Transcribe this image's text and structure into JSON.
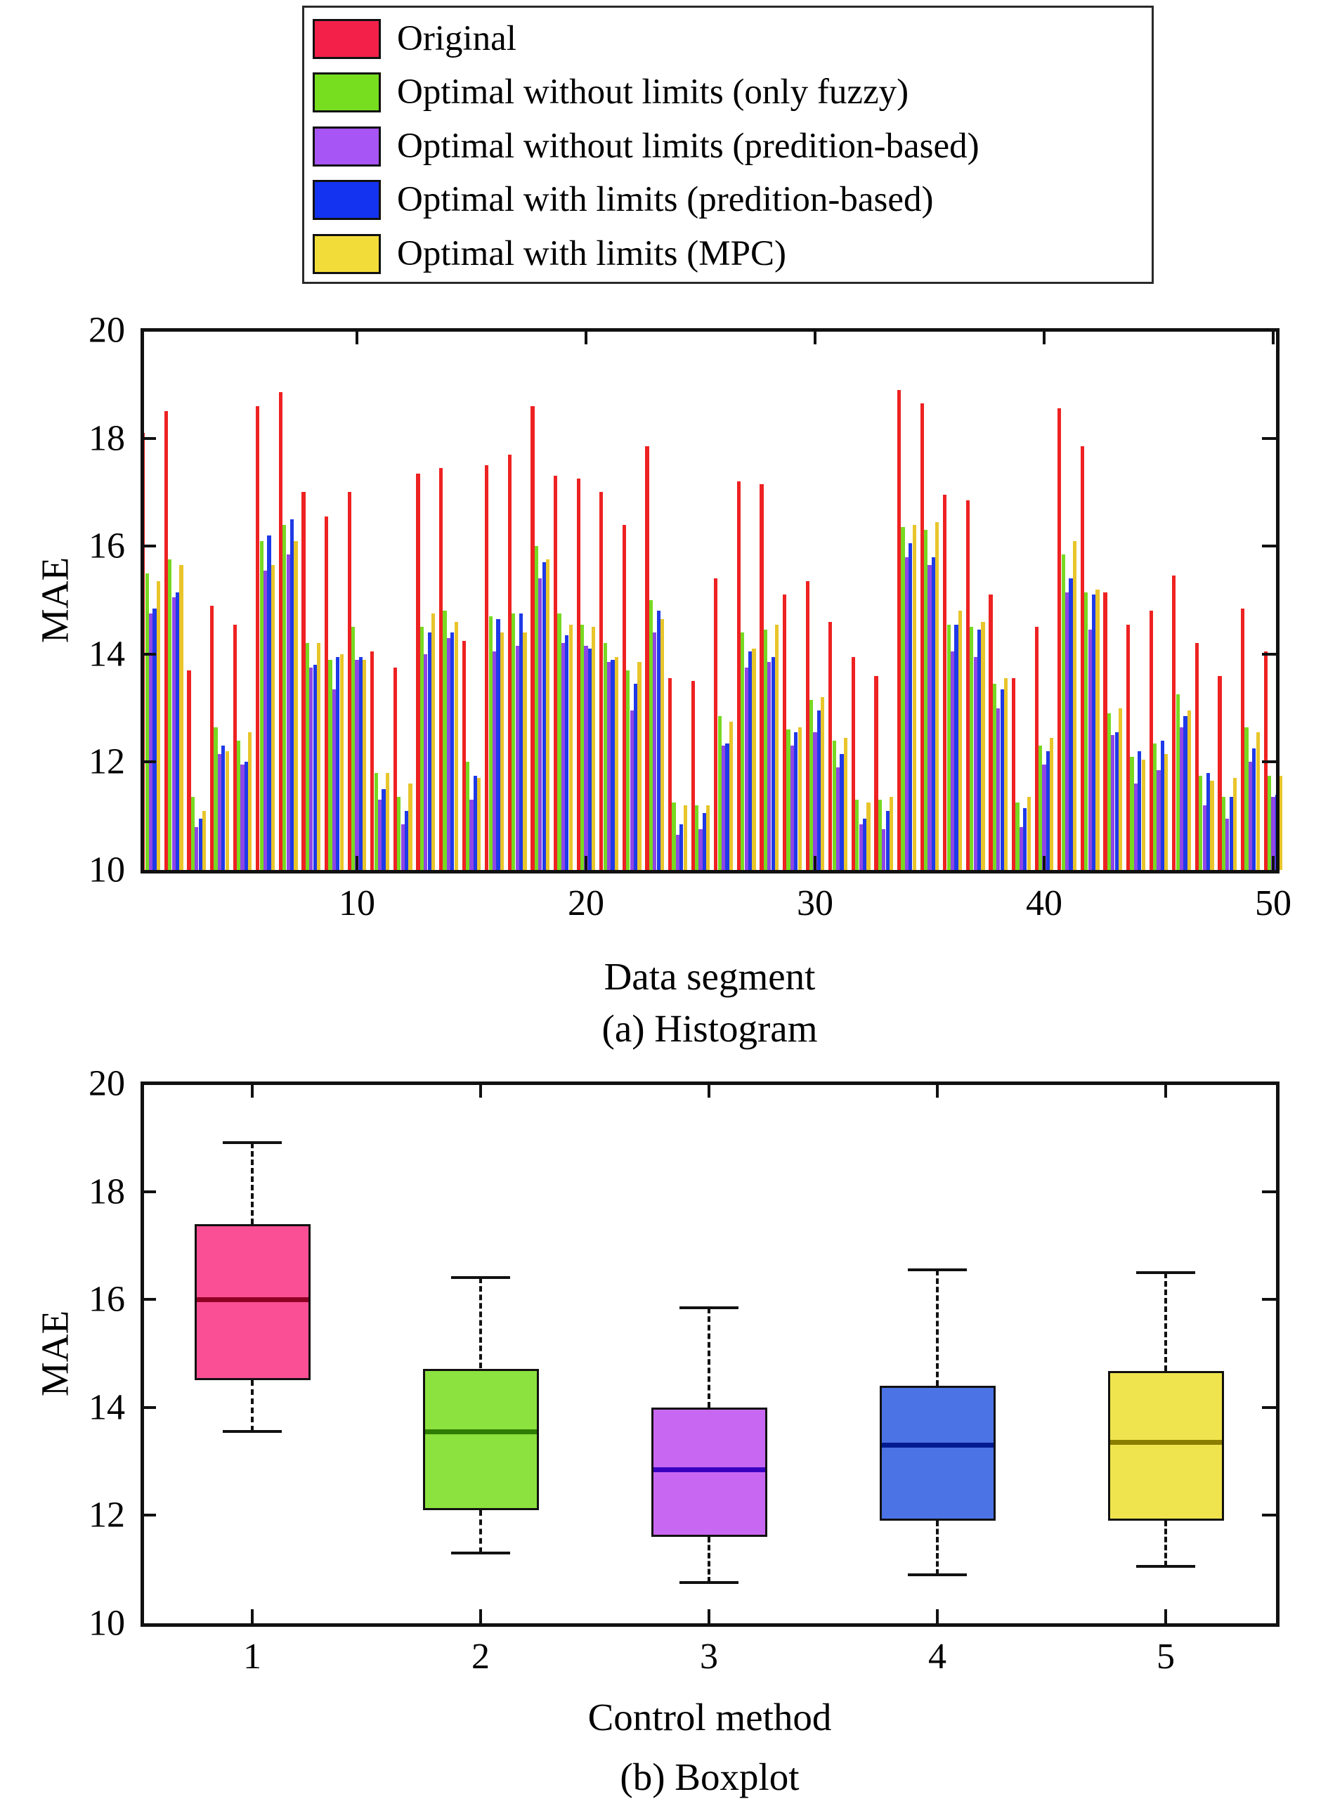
{
  "legend": {
    "items": [
      {
        "label": "Original",
        "color": "#f32049"
      },
      {
        "label": "Optimal without limits (only fuzzy)",
        "color": "#76dd1f"
      },
      {
        "label": "Optimal without limits (predition-based)",
        "color": "#a855f5"
      },
      {
        "label": "Optimal with limits (predition-based)",
        "color": "#1433f0"
      },
      {
        "label": "Optimal with limits (MPC)",
        "color": "#f2dc3a"
      }
    ]
  },
  "chart_data": [
    {
      "type": "bar",
      "title": "",
      "xlabel": "Data segment",
      "ylabel": "MAE",
      "caption": "(a) Histogram",
      "ylim": [
        10,
        20
      ],
      "y_ticks": [
        10,
        12,
        14,
        16,
        18,
        20
      ],
      "x_ticks": [
        10,
        20,
        30,
        40,
        50
      ],
      "n_segments": 50,
      "grid": false,
      "legend_position": "top-outside",
      "series": [
        {
          "name": "Original",
          "color": "#ee2222",
          "values": [
            18.1,
            18.5,
            13.7,
            14.9,
            14.55,
            18.6,
            18.85,
            17.0,
            16.55,
            17.0,
            14.05,
            13.75,
            17.35,
            17.45,
            14.25,
            17.5,
            17.7,
            18.6,
            17.3,
            17.25,
            17.0,
            16.4,
            17.85,
            13.55,
            13.5,
            15.4,
            17.2,
            17.15,
            15.1,
            15.35,
            14.6,
            13.95,
            13.6,
            18.9,
            18.65,
            16.95,
            16.85,
            15.1,
            13.55,
            14.5,
            18.55,
            17.85,
            15.15,
            14.55,
            14.8,
            15.45,
            14.2,
            13.6,
            14.85,
            14.05
          ]
        },
        {
          "name": "Optimal without limits (only fuzzy)",
          "color": "#77d921",
          "values": [
            15.5,
            15.75,
            11.35,
            12.65,
            12.4,
            16.1,
            16.4,
            14.2,
            13.9,
            14.5,
            11.8,
            11.35,
            14.5,
            14.8,
            12.0,
            14.7,
            14.75,
            16.0,
            14.75,
            14.55,
            14.2,
            13.7,
            15.0,
            11.25,
            11.2,
            12.85,
            14.4,
            14.45,
            12.6,
            13.15,
            12.4,
            11.3,
            11.3,
            16.35,
            16.3,
            14.55,
            14.5,
            13.45,
            11.25,
            12.3,
            15.85,
            15.15,
            12.9,
            12.1,
            12.35,
            13.25,
            11.75,
            11.35,
            12.65,
            11.75
          ]
        },
        {
          "name": "Optimal without limits (predition-based)",
          "color": "#8f46e6",
          "values": [
            14.75,
            15.05,
            10.8,
            12.15,
            11.95,
            15.55,
            15.85,
            13.75,
            13.35,
            13.9,
            11.3,
            10.85,
            14.0,
            14.3,
            11.3,
            14.05,
            14.15,
            15.4,
            14.2,
            14.15,
            13.85,
            12.95,
            14.4,
            10.65,
            10.75,
            12.3,
            13.75,
            13.85,
            12.3,
            12.55,
            11.9,
            10.85,
            10.75,
            15.8,
            15.65,
            14.05,
            13.95,
            13.0,
            10.8,
            11.95,
            15.15,
            14.45,
            12.5,
            11.6,
            11.85,
            12.65,
            11.2,
            10.95,
            12.0,
            11.35
          ]
        },
        {
          "name": "Optimal with limits (predition-based)",
          "color": "#1f3ae8",
          "values": [
            14.85,
            15.15,
            10.95,
            12.3,
            12.0,
            16.2,
            16.5,
            13.8,
            13.95,
            13.95,
            11.5,
            11.1,
            14.4,
            14.4,
            11.75,
            14.65,
            14.75,
            15.7,
            14.35,
            14.1,
            13.9,
            13.45,
            14.8,
            10.85,
            11.05,
            12.35,
            14.05,
            13.95,
            12.55,
            12.95,
            12.15,
            10.95,
            11.1,
            16.05,
            15.8,
            14.55,
            14.45,
            13.35,
            11.15,
            12.2,
            15.4,
            15.1,
            12.55,
            12.2,
            12.4,
            12.85,
            11.8,
            11.35,
            12.25,
            11.4
          ]
        },
        {
          "name": "Optimal with limits (MPC)",
          "color": "#e8c52b",
          "values": [
            15.35,
            15.65,
            11.1,
            12.2,
            12.55,
            15.65,
            16.1,
            14.2,
            14.0,
            13.9,
            11.8,
            11.6,
            14.75,
            14.6,
            11.7,
            14.4,
            14.4,
            15.75,
            14.55,
            14.5,
            13.95,
            13.85,
            14.65,
            11.2,
            11.2,
            12.75,
            14.1,
            14.55,
            12.65,
            13.2,
            12.45,
            11.25,
            11.35,
            16.4,
            16.45,
            14.8,
            14.6,
            13.55,
            11.35,
            12.45,
            16.1,
            15.2,
            13.0,
            12.05,
            12.15,
            12.95,
            11.65,
            11.7,
            12.55,
            11.75
          ]
        }
      ]
    },
    {
      "type": "boxplot",
      "title": "",
      "xlabel": "Control method",
      "ylabel": "MAE",
      "caption": "(b) Boxplot",
      "ylim": [
        10,
        20
      ],
      "y_ticks": [
        10,
        12,
        14,
        16,
        18,
        20
      ],
      "x_ticks": [
        1,
        2,
        3,
        4,
        5
      ],
      "grid": false,
      "boxes": [
        {
          "method": "1",
          "color": "#fa4f95",
          "median_color": "#8f0025",
          "whisker_low": 13.55,
          "q1": 14.5,
          "median": 16.0,
          "q3": 17.4,
          "whisker_high": 18.9
        },
        {
          "method": "2",
          "color": "#8ce23e",
          "median_color": "#2f7d00",
          "whisker_low": 11.3,
          "q1": 12.1,
          "median": 13.55,
          "q3": 14.72,
          "whisker_high": 16.4
        },
        {
          "method": "3",
          "color": "#c868f2",
          "median_color": "#3a00c0",
          "whisker_low": 10.75,
          "q1": 11.6,
          "median": 12.85,
          "q3": 14.0,
          "whisker_high": 15.85
        },
        {
          "method": "4",
          "color": "#4b73e6",
          "median_color": "#001a8f",
          "whisker_low": 10.9,
          "q1": 11.9,
          "median": 13.3,
          "q3": 14.4,
          "whisker_high": 16.55
        },
        {
          "method": "5",
          "color": "#efe44e",
          "median_color": "#8a7d00",
          "whisker_low": 11.05,
          "q1": 11.9,
          "median": 13.35,
          "q3": 14.68,
          "whisker_high": 16.5
        }
      ]
    }
  ]
}
